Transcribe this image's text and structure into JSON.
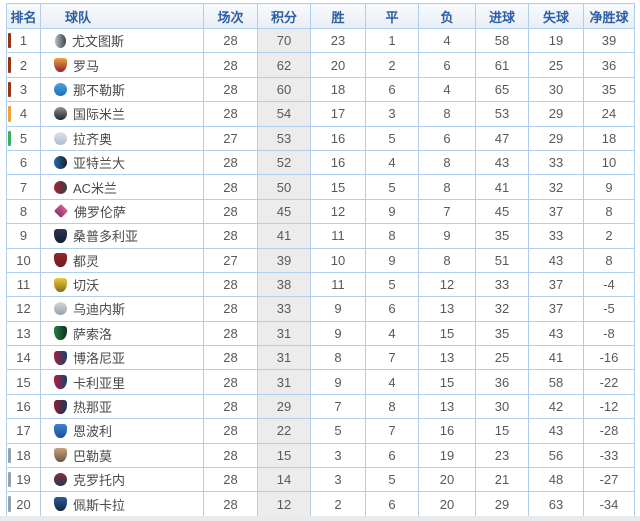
{
  "colors": {
    "border_outer": "#86b4dc",
    "border_inner": "#aed0ec",
    "header_text": "#2b5ea7",
    "points_column_bg": "#ececec",
    "zones": {
      "ucl": "#993311",
      "ucl_qualifier": "#f2a134",
      "uel": "#3cb054",
      "relegation": "#9aa1a8"
    }
  },
  "table": {
    "columns": [
      {
        "key": "rank",
        "label": "排名"
      },
      {
        "key": "team",
        "label": "球队"
      },
      {
        "key": "played",
        "label": "场次"
      },
      {
        "key": "points",
        "label": "积分"
      },
      {
        "key": "wins",
        "label": "胜"
      },
      {
        "key": "draws",
        "label": "平"
      },
      {
        "key": "losses",
        "label": "负"
      },
      {
        "key": "goals_for",
        "label": "进球"
      },
      {
        "key": "goals_against",
        "label": "失球"
      },
      {
        "key": "goal_diff",
        "label": "净胜球"
      }
    ],
    "rows": [
      {
        "rank": 1,
        "team": "尤文图斯",
        "played": 28,
        "points": 70,
        "wins": 23,
        "draws": 1,
        "losses": 4,
        "goals_for": 58,
        "goals_against": 19,
        "goal_diff": 39,
        "zone": "ucl",
        "icon": {
          "shape": "oval",
          "dir": "h",
          "c1": "#b9bec5",
          "c2": "#40454b"
        }
      },
      {
        "rank": 2,
        "team": "罗马",
        "played": 28,
        "points": 62,
        "wins": 20,
        "draws": 2,
        "losses": 6,
        "goals_for": 61,
        "goals_against": 25,
        "goal_diff": 36,
        "zone": "ucl",
        "icon": {
          "shape": "shield",
          "dir": "v",
          "c1": "#e8a33d",
          "c2": "#96242e"
        }
      },
      {
        "rank": 3,
        "team": "那不勒斯",
        "played": 28,
        "points": 60,
        "wins": 18,
        "draws": 6,
        "losses": 4,
        "goals_for": 65,
        "goals_against": 30,
        "goal_diff": 35,
        "zone": "ucl",
        "icon": {
          "shape": "circle",
          "dir": "v",
          "c1": "#4aa3e0",
          "c2": "#1c6fb5"
        }
      },
      {
        "rank": 4,
        "team": "国际米兰",
        "played": 28,
        "points": 54,
        "wins": 17,
        "draws": 3,
        "losses": 8,
        "goals_for": 53,
        "goals_against": 29,
        "goal_diff": 24,
        "zone": "ucl_qualifier",
        "icon": {
          "shape": "circle",
          "dir": "v",
          "c1": "#8d9298",
          "c2": "#23262a"
        }
      },
      {
        "rank": 5,
        "team": "拉齐奥",
        "played": 27,
        "points": 53,
        "wins": 16,
        "draws": 5,
        "losses": 6,
        "goals_for": 47,
        "goals_against": 29,
        "goal_diff": 18,
        "zone": "uel",
        "icon": {
          "shape": "circle",
          "dir": "v",
          "c1": "#dde4ec",
          "c2": "#aebccb"
        }
      },
      {
        "rank": 6,
        "team": "亚特兰大",
        "played": 28,
        "points": 52,
        "wins": 16,
        "draws": 4,
        "losses": 8,
        "goals_for": 43,
        "goals_against": 33,
        "goal_diff": 10,
        "zone": "none",
        "icon": {
          "shape": "circle",
          "dir": "h",
          "c1": "#2268b2",
          "c2": "#1c1f24"
        }
      },
      {
        "rank": 7,
        "team": "AC米兰",
        "played": 28,
        "points": 50,
        "wins": 15,
        "draws": 5,
        "losses": 8,
        "goals_for": 41,
        "goals_against": 32,
        "goal_diff": 9,
        "zone": "none",
        "icon": {
          "shape": "circle",
          "dir": "h",
          "c1": "#a12430",
          "c2": "#3a3f45"
        }
      },
      {
        "rank": 8,
        "team": "佛罗伦萨",
        "played": 28,
        "points": 45,
        "wins": 12,
        "draws": 9,
        "losses": 7,
        "goals_for": 45,
        "goals_against": 37,
        "goal_diff": 8,
        "zone": "none",
        "icon": {
          "shape": "diamond",
          "dir": "v",
          "c1": "#d45c8e",
          "c2": "#8e3472"
        }
      },
      {
        "rank": 9,
        "team": "桑普多利亚",
        "played": 28,
        "points": 41,
        "wins": 11,
        "draws": 8,
        "losses": 9,
        "goals_for": 35,
        "goals_against": 33,
        "goal_diff": 2,
        "zone": "none",
        "icon": {
          "shape": "shield",
          "dir": "v",
          "c1": "#2a3550",
          "c2": "#141c30"
        }
      },
      {
        "rank": 10,
        "team": "都灵",
        "played": 27,
        "points": 39,
        "wins": 10,
        "draws": 9,
        "losses": 8,
        "goals_for": 51,
        "goals_against": 43,
        "goal_diff": 8,
        "zone": "none",
        "icon": {
          "shape": "shield",
          "dir": "v",
          "c1": "#93272f",
          "c2": "#6e1a22"
        }
      },
      {
        "rank": 11,
        "team": "切沃",
        "played": 28,
        "points": 38,
        "wins": 11,
        "draws": 5,
        "losses": 12,
        "goals_for": 33,
        "goals_against": 37,
        "goal_diff": -4,
        "zone": "none",
        "icon": {
          "shape": "shield",
          "dir": "v",
          "c1": "#e9cb3a",
          "c2": "#8a6d1f"
        }
      },
      {
        "rank": 12,
        "team": "乌迪内斯",
        "played": 28,
        "points": 33,
        "wins": 9,
        "draws": 6,
        "losses": 13,
        "goals_for": 32,
        "goals_against": 37,
        "goal_diff": -5,
        "zone": "none",
        "icon": {
          "shape": "circle",
          "dir": "v",
          "c1": "#d4d8dd",
          "c2": "#9aa1a9"
        }
      },
      {
        "rank": 13,
        "team": "萨索洛",
        "played": 28,
        "points": 31,
        "wins": 9,
        "draws": 4,
        "losses": 15,
        "goals_for": 35,
        "goals_against": 43,
        "goal_diff": -8,
        "zone": "none",
        "icon": {
          "shape": "shield",
          "dir": "h",
          "c1": "#1f8040",
          "c2": "#15321e"
        }
      },
      {
        "rank": 14,
        "team": "博洛尼亚",
        "played": 28,
        "points": 31,
        "wins": 8,
        "draws": 7,
        "losses": 13,
        "goals_for": 25,
        "goals_against": 41,
        "goal_diff": -16,
        "zone": "none",
        "icon": {
          "shape": "shield",
          "dir": "h",
          "c1": "#a11f3c",
          "c2": "#1c3f73"
        }
      },
      {
        "rank": 15,
        "team": "卡利亚里",
        "played": 28,
        "points": 31,
        "wins": 9,
        "draws": 4,
        "losses": 15,
        "goals_for": 36,
        "goals_against": 58,
        "goal_diff": -22,
        "zone": "none",
        "icon": {
          "shape": "shield",
          "dir": "h",
          "c1": "#b01e3a",
          "c2": "#1c3e6e"
        }
      },
      {
        "rank": 16,
        "team": "热那亚",
        "played": 28,
        "points": 29,
        "wins": 7,
        "draws": 8,
        "losses": 13,
        "goals_for": 30,
        "goals_against": 42,
        "goal_diff": -12,
        "zone": "none",
        "icon": {
          "shape": "shield",
          "dir": "h",
          "c1": "#8e1f31",
          "c2": "#18365e"
        }
      },
      {
        "rank": 17,
        "team": "恩波利",
        "played": 28,
        "points": 22,
        "wins": 5,
        "draws": 7,
        "losses": 16,
        "goals_for": 15,
        "goals_against": 43,
        "goal_diff": -28,
        "zone": "none",
        "icon": {
          "shape": "shield",
          "dir": "v",
          "c1": "#3b82d6",
          "c2": "#1d4f96"
        }
      },
      {
        "rank": 18,
        "team": "巴勒莫",
        "played": 28,
        "points": 15,
        "wins": 3,
        "draws": 6,
        "losses": 19,
        "goals_for": 23,
        "goals_against": 56,
        "goal_diff": -33,
        "zone": "relegation",
        "icon": {
          "shape": "shield",
          "dir": "v",
          "c1": "#c8a27a",
          "c2": "#6b5744"
        }
      },
      {
        "rank": 19,
        "team": "克罗托内",
        "played": 28,
        "points": 14,
        "wins": 3,
        "draws": 5,
        "losses": 20,
        "goals_for": 21,
        "goals_against": 48,
        "goal_diff": -27,
        "zone": "relegation",
        "icon": {
          "shape": "circle",
          "dir": "v",
          "c1": "#8a2a36",
          "c2": "#23365c"
        }
      },
      {
        "rank": 20,
        "team": "佩斯卡拉",
        "played": 28,
        "points": 12,
        "wins": 2,
        "draws": 6,
        "losses": 20,
        "goals_for": 29,
        "goals_against": 63,
        "goal_diff": -34,
        "zone": "relegation",
        "icon": {
          "shape": "shield",
          "dir": "v",
          "c1": "#2a5a9c",
          "c2": "#12283f"
        }
      }
    ]
  }
}
